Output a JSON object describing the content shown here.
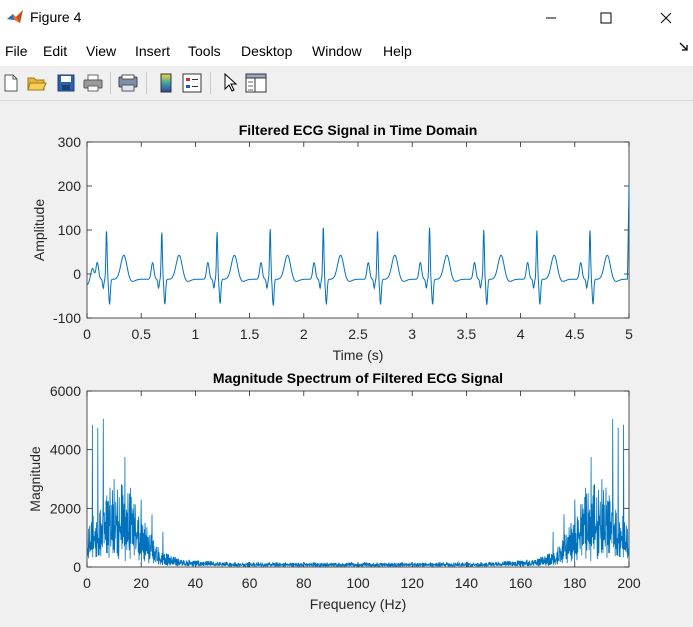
{
  "window": {
    "title": "Figure 4"
  },
  "menu": [
    "File",
    "Edit",
    "View",
    "Insert",
    "Tools",
    "Desktop",
    "Window",
    "Help"
  ],
  "toolbar": [
    {
      "name": "new-figure-icon"
    },
    {
      "name": "open-file-icon"
    },
    {
      "name": "save-icon"
    },
    {
      "name": "print-icon"
    },
    {
      "name": "print-preview-icon"
    },
    {
      "name": "colorbar-icon"
    },
    {
      "name": "legend-icon"
    },
    {
      "name": "pointer-icon"
    },
    {
      "name": "property-editor-icon"
    }
  ],
  "colors": {
    "line": "#0072bd"
  },
  "chart_data": [
    {
      "type": "line",
      "title": "Filtered ECG Signal in Time Domain",
      "xlabel": "Time (s)",
      "ylabel": "Amplitude",
      "xlim": [
        0,
        5
      ],
      "ylim": [
        -100,
        300
      ],
      "xticks": [
        0,
        0.5,
        1,
        1.5,
        2,
        2.5,
        3,
        3.5,
        4,
        4.5,
        5
      ],
      "xtick_labels": [
        "0",
        "0.5",
        "1",
        "1.5",
        "2",
        "2.5",
        "3",
        "3.5",
        "4",
        "4.5",
        "5"
      ],
      "yticks": [
        -100,
        0,
        100,
        200,
        300
      ],
      "ytick_labels": [
        "-100",
        "0",
        "100",
        "200",
        "300"
      ],
      "beat_times": [
        0.18,
        0.69,
        1.2,
        1.69,
        2.18,
        2.68,
        3.16,
        3.66,
        4.15,
        4.64
      ],
      "peak_values": [
        97,
        92,
        92,
        100,
        105,
        97,
        103,
        98,
        96,
        97
      ],
      "min_values": [
        -62,
        -62,
        -60,
        -65,
        -62,
        -62,
        -62,
        -63,
        -62,
        -62
      ],
      "end_spike_value": 205
    },
    {
      "type": "line",
      "title": "Magnitude Spectrum of Filtered ECG Signal",
      "xlabel": "Frequency (Hz)",
      "ylabel": "Magnitude",
      "xlim": [
        0,
        200
      ],
      "ylim": [
        0,
        6000
      ],
      "xticks": [
        0,
        20,
        40,
        60,
        80,
        100,
        120,
        140,
        160,
        180,
        200
      ],
      "xtick_labels": [
        "0",
        "20",
        "40",
        "60",
        "80",
        "100",
        "120",
        "140",
        "160",
        "180",
        "200"
      ],
      "yticks": [
        0,
        2000,
        4000,
        6000
      ],
      "ytick_labels": [
        "0",
        "2000",
        "4000",
        "6000"
      ],
      "peaks": [
        {
          "f": 2,
          "v": 4850
        },
        {
          "f": 4,
          "v": 4750
        },
        {
          "f": 6,
          "v": 5050
        },
        {
          "f": 10,
          "v": 3000
        },
        {
          "f": 14,
          "v": 3750
        },
        {
          "f": 16,
          "v": 2700
        },
        {
          "f": 20,
          "v": 2300
        },
        {
          "f": 24,
          "v": 1800
        },
        {
          "f": 28,
          "v": 1200
        }
      ],
      "floor": 150
    }
  ]
}
